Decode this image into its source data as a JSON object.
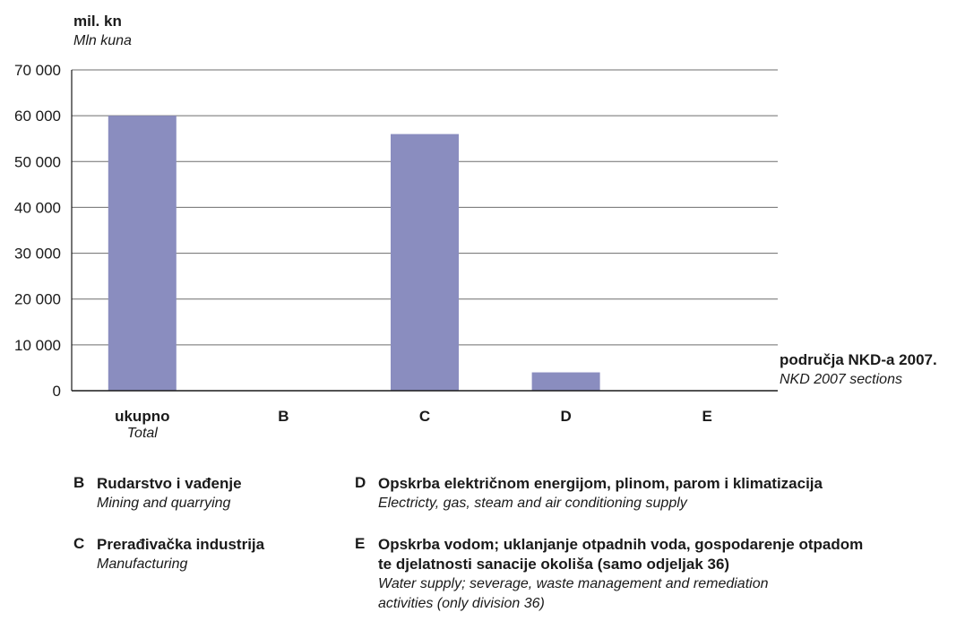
{
  "chart_data": {
    "type": "bar",
    "ylabel": "mil. kn",
    "ylabel_en": "Mln kuna",
    "xlabel": "područja NKD-a 2007.",
    "xlabel_en": "NKD 2007 sections",
    "ylim": [
      0,
      70000
    ],
    "yticks": [
      0,
      10000,
      20000,
      30000,
      40000,
      50000,
      60000,
      70000
    ],
    "ytick_labels": [
      "0",
      "10 000",
      "20 000",
      "30 000",
      "40 000",
      "50 000",
      "60 000",
      "70 000"
    ],
    "grid": true,
    "bar_color": "#8a8dbf",
    "categories": [
      "ukupno",
      "B",
      "C",
      "D",
      "E"
    ],
    "categories_en": [
      "Total",
      "",
      "",
      "",
      ""
    ],
    "values": [
      60000,
      0,
      56000,
      4000,
      0
    ]
  },
  "legend": [
    {
      "code": "B",
      "hr": [
        "Rudarstvo i vađenje"
      ],
      "en": [
        "Mining and quarrying"
      ]
    },
    {
      "code": "C",
      "hr": [
        "Prerađivačka industrija"
      ],
      "en": [
        "Manufacturing"
      ]
    },
    {
      "code": "D",
      "hr": [
        "Opskrba električnom energijom, plinom, parom i klimatizacija"
      ],
      "en": [
        "Electricty, gas, steam and air conditioning supply"
      ]
    },
    {
      "code": "E",
      "hr": [
        "Opskrba vodom; uklanjanje otpadnih voda, gospodarenje otpadom",
        "te djelatnosti sanacije okoliša (samo odjeljak 36)"
      ],
      "en": [
        "Water supply; severage, waste management and remediation",
        "activities (only division 36)"
      ]
    }
  ]
}
